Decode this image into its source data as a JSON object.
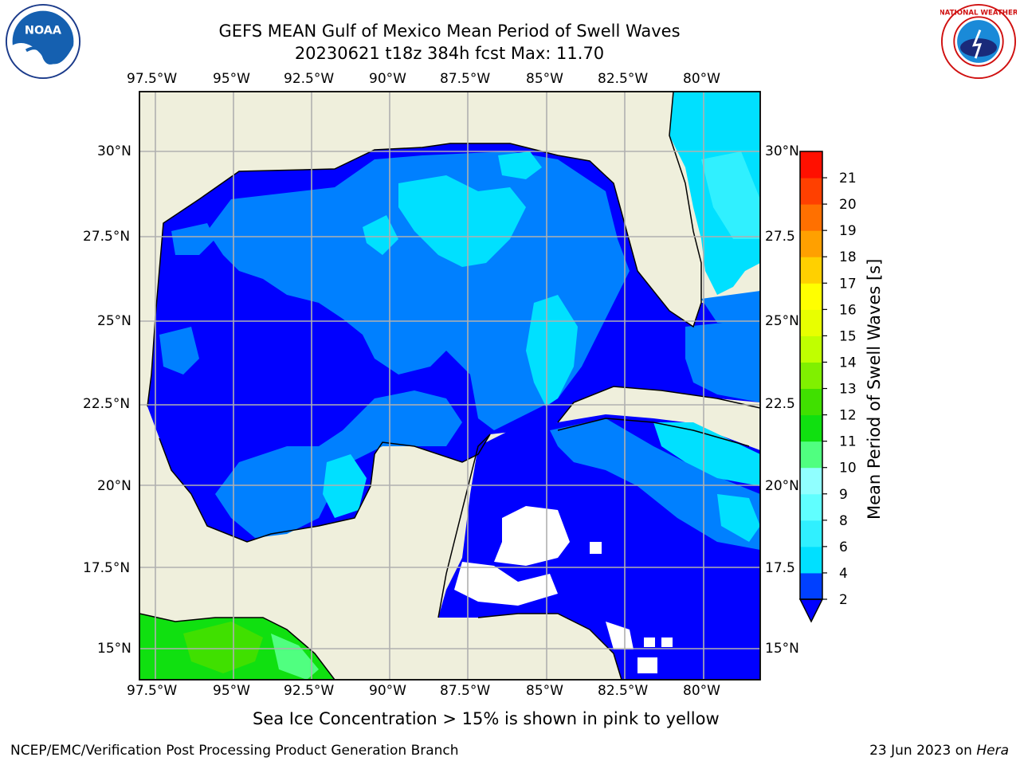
{
  "header": {
    "title_line1": "GEFS MEAN Gulf of Mexico Mean Period of Swell Waves",
    "title_line2": "20230621 t18z 384h fcst   Max: 11.70"
  },
  "logos": {
    "left": "noaa-logo",
    "right": "nws-logo"
  },
  "map": {
    "lon_labels": [
      "97.5°W",
      "95°W",
      "92.5°W",
      "90°W",
      "87.5°W",
      "85°W",
      "82.5°W",
      "80°W"
    ],
    "lat_labels": [
      "30°N",
      "27.5°N",
      "25°N",
      "22.5°N",
      "20°N",
      "17.5°N",
      "15°N"
    ],
    "lat_labels_right": [
      "30°N",
      "27.5",
      "25°N",
      "22.5",
      "20°N",
      "17.5",
      "15°N"
    ],
    "land_color": "#efefdc",
    "grid_color": "#b0b0b0"
  },
  "colorbar": {
    "label": "Mean Period of Swell Waves [s]",
    "ticks": [
      "2",
      "4",
      "6",
      "8",
      "9",
      "10",
      "11",
      "12",
      "13",
      "14",
      "15",
      "16",
      "17",
      "18",
      "19",
      "20",
      "21"
    ],
    "colors": [
      "#0040ff",
      "#00e0ff",
      "#30f0ff",
      "#60ffff",
      "#90ffff",
      "#50ff80",
      "#10e010",
      "#40e000",
      "#80f000",
      "#c0ff00",
      "#e8ff00",
      "#ffff00",
      "#ffd000",
      "#ffa000",
      "#ff7000",
      "#ff4000",
      "#ff1000"
    ],
    "under_color": "#0000ff"
  },
  "footer": {
    "note": "Sea Ice Concentration > 15% is shown in pink to yellow",
    "left": "NCEP/EMC/Verification Post Processing Product Generation Branch",
    "right_prefix": "23 Jun 2023 on",
    "right_host": "Hera"
  }
}
